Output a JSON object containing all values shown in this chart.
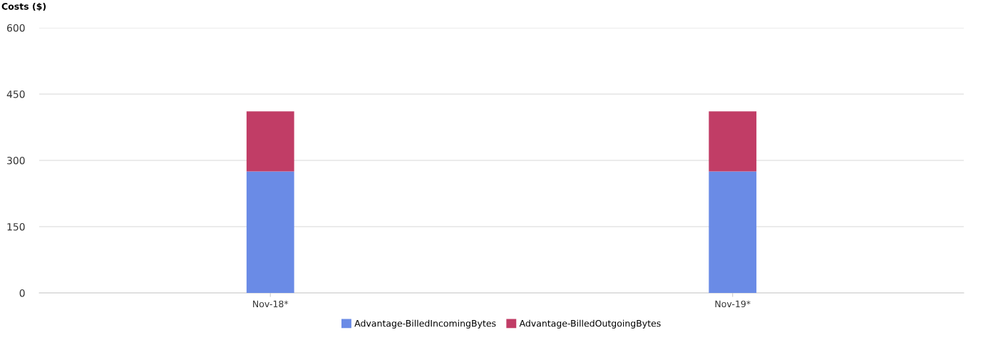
{
  "chart_data": {
    "type": "bar",
    "ylabel": "Costs ($)",
    "categories": [
      "Nov-18*",
      "Nov-19*"
    ],
    "stacked": true,
    "series": [
      {
        "name": "Advantage-BilledIncomingBytes",
        "color": "#6a8be6",
        "values": [
          275,
          275
        ]
      },
      {
        "name": "Advantage-BilledOutgoingBytes",
        "color": "#c13d66",
        "values": [
          136,
          136
        ]
      }
    ],
    "ylim": [
      0,
      600
    ],
    "yticks": [
      0,
      150,
      300,
      450,
      600
    ],
    "grid": "y",
    "legend": "bottom"
  }
}
